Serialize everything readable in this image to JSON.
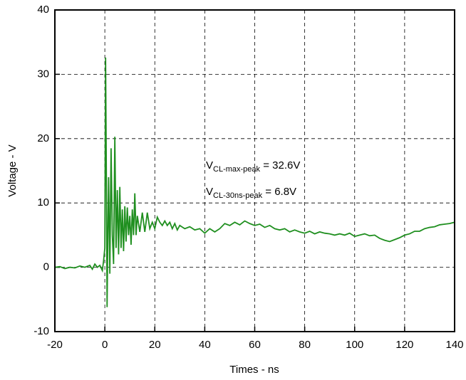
{
  "chart_data": {
    "type": "line",
    "xlabel": "Times - ns",
    "ylabel": "Voltage - V",
    "xlim": [
      -20,
      140
    ],
    "xticks": [
      -20,
      0,
      20,
      40,
      60,
      80,
      100,
      120,
      140
    ],
    "ylim": [
      -10,
      40
    ],
    "yticks": [
      -10,
      0,
      10,
      20,
      30,
      40
    ],
    "grid": true,
    "annotations": [
      {
        "main": "V",
        "sub": "CL-max-peak",
        "rest": " = 32.6V"
      },
      {
        "main": "V",
        "sub": "CL-30ns-peak",
        "rest": " = 6.8V"
      }
    ],
    "series": [
      {
        "color": "#1f8f1f",
        "x": [
          -20,
          -18,
          -16,
          -14,
          -12,
          -10,
          -8,
          -6,
          -5,
          -4,
          -3,
          -2,
          -1,
          -0.5,
          0,
          0.3,
          0.6,
          0.9,
          1.2,
          1.5,
          2,
          2.5,
          3,
          3.5,
          4,
          4.5,
          5,
          5.5,
          6,
          6.5,
          7,
          7.5,
          8,
          8.5,
          9,
          9.5,
          10,
          10.5,
          11,
          11.5,
          12,
          12.5,
          13,
          14,
          15,
          16,
          17,
          18,
          19,
          20,
          21,
          22,
          23,
          24,
          25,
          26,
          27,
          28,
          29,
          30,
          32,
          34,
          36,
          38,
          40,
          42,
          44,
          46,
          48,
          50,
          52,
          54,
          56,
          58,
          60,
          62,
          64,
          66,
          68,
          70,
          72,
          74,
          76,
          78,
          80,
          82,
          84,
          86,
          88,
          90,
          92,
          94,
          96,
          98,
          100,
          102,
          104,
          106,
          108,
          110,
          112,
          114,
          116,
          118,
          120,
          122,
          124,
          126,
          128,
          130,
          132,
          134,
          136,
          138,
          140
        ],
        "values": [
          0,
          0.1,
          -0.2,
          0,
          -0.1,
          0.2,
          0,
          0.3,
          -0.3,
          0.5,
          0,
          0.3,
          -0.5,
          1,
          3,
          32.6,
          15,
          -6.2,
          5,
          14,
          -1,
          18.5,
          5,
          0.5,
          20.3,
          3,
          12,
          2,
          12.5,
          3,
          9,
          2.5,
          9.5,
          4,
          9.3,
          5,
          8,
          3.5,
          9,
          5,
          11.5,
          5,
          8,
          5.5,
          8.5,
          5.5,
          8.5,
          6,
          7,
          6,
          7.8,
          7,
          6.5,
          7.2,
          6.5,
          7,
          6,
          6.8,
          5.8,
          6.5,
          6,
          6.3,
          5.8,
          6,
          5.3,
          6,
          5.5,
          6,
          6.8,
          6.5,
          7,
          6.6,
          7.2,
          6.8,
          6.5,
          6.7,
          6.2,
          6.5,
          6,
          5.8,
          6,
          5.5,
          5.8,
          5.5,
          5.3,
          5.6,
          5.2,
          5.5,
          5.3,
          5.2,
          5,
          5.2,
          5,
          5.3,
          4.8,
          5,
          5.2,
          4.9,
          5,
          4.5,
          4.2,
          4,
          4.3,
          4.6,
          5,
          5.2,
          5.6,
          5.6,
          6,
          6.2,
          6.3,
          6.6,
          6.7,
          6.8,
          7
        ]
      }
    ]
  }
}
